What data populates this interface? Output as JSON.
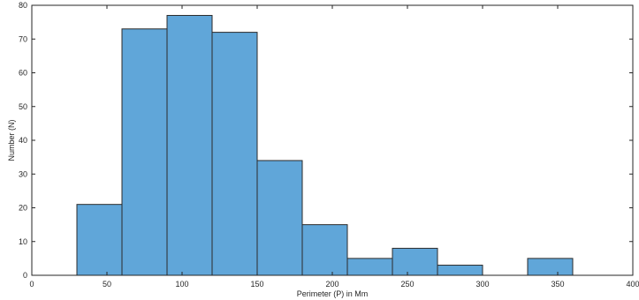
{
  "chart_data": {
    "type": "bar",
    "title": "",
    "xlabel": "Perimeter (P) in Mm",
    "ylabel": "Number (N)",
    "xlim": [
      0,
      400
    ],
    "ylim": [
      0,
      80
    ],
    "xticks": [
      0,
      50,
      100,
      150,
      200,
      250,
      300,
      350,
      400
    ],
    "yticks": [
      0,
      10,
      20,
      30,
      40,
      50,
      60,
      70,
      80
    ],
    "bins": [
      {
        "start": 30,
        "end": 60,
        "value": 21
      },
      {
        "start": 60,
        "end": 90,
        "value": 73
      },
      {
        "start": 90,
        "end": 120,
        "value": 77
      },
      {
        "start": 120,
        "end": 150,
        "value": 72
      },
      {
        "start": 150,
        "end": 180,
        "value": 34
      },
      {
        "start": 180,
        "end": 210,
        "value": 15
      },
      {
        "start": 210,
        "end": 240,
        "value": 5
      },
      {
        "start": 240,
        "end": 270,
        "value": 8
      },
      {
        "start": 270,
        "end": 300,
        "value": 3
      },
      {
        "start": 300,
        "end": 330,
        "value": 0
      },
      {
        "start": 330,
        "end": 360,
        "value": 5
      }
    ],
    "grid": false,
    "legend": false,
    "colors": {
      "bar_fill": "#60a6d9",
      "bar_stroke": "#2b2b2b",
      "axis": "#262626",
      "background": "#ffffff"
    }
  }
}
